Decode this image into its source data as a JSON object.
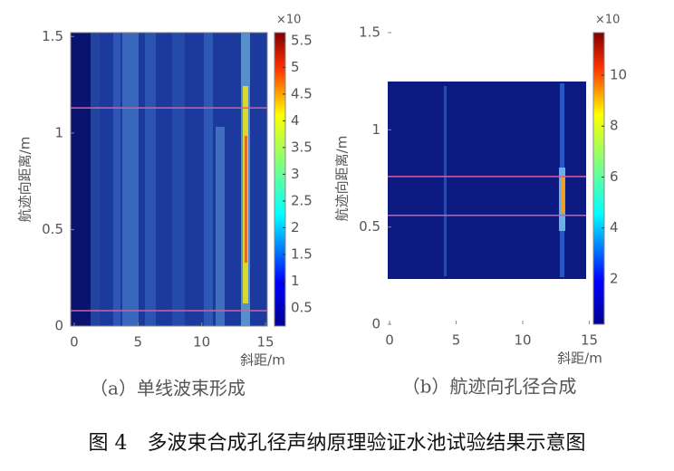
{
  "chart_data": [
    {
      "type": "heatmap",
      "subtitle": "（a）单线波束形成",
      "xlabel": "斜距/m",
      "ylabel": "航迹向距离/m",
      "xlim": [
        -0.28,
        15.14
      ],
      "ylim": [
        0,
        1.52
      ],
      "xticks": [
        0,
        5,
        10,
        15
      ],
      "yticks": [
        0,
        0.5,
        1,
        1.5
      ],
      "colorbar_label": "×10",
      "clim": [
        0.16,
        5.65
      ],
      "cticks": [
        0.5,
        1,
        1.5,
        2,
        2.5,
        3,
        3.5,
        4,
        4.5,
        5,
        5.5
      ],
      "hlines": [
        1.13,
        0.08
      ],
      "hline_color": "#d060a0"
    },
    {
      "type": "heatmap",
      "subtitle": "（b）航迹向孔径合成",
      "xlabel": "斜距/m",
      "ylabel": "航迹向距离/m",
      "xlim": [
        -0.14,
        15.1
      ],
      "ylim": [
        0,
        1.5
      ],
      "xticks": [
        0,
        5,
        10,
        15
      ],
      "yticks": [
        0,
        0.5,
        1,
        1.5
      ],
      "colorbar_label": "×10",
      "clim": [
        0.22,
        11.67
      ],
      "cticks": [
        2,
        4,
        6,
        8,
        10
      ],
      "hlines": [
        0.76,
        0.56
      ],
      "hline_color": "#d060a0"
    }
  ],
  "caption": "图 4　多波束合成孔径声纳原理验证水池试验结果示意图"
}
